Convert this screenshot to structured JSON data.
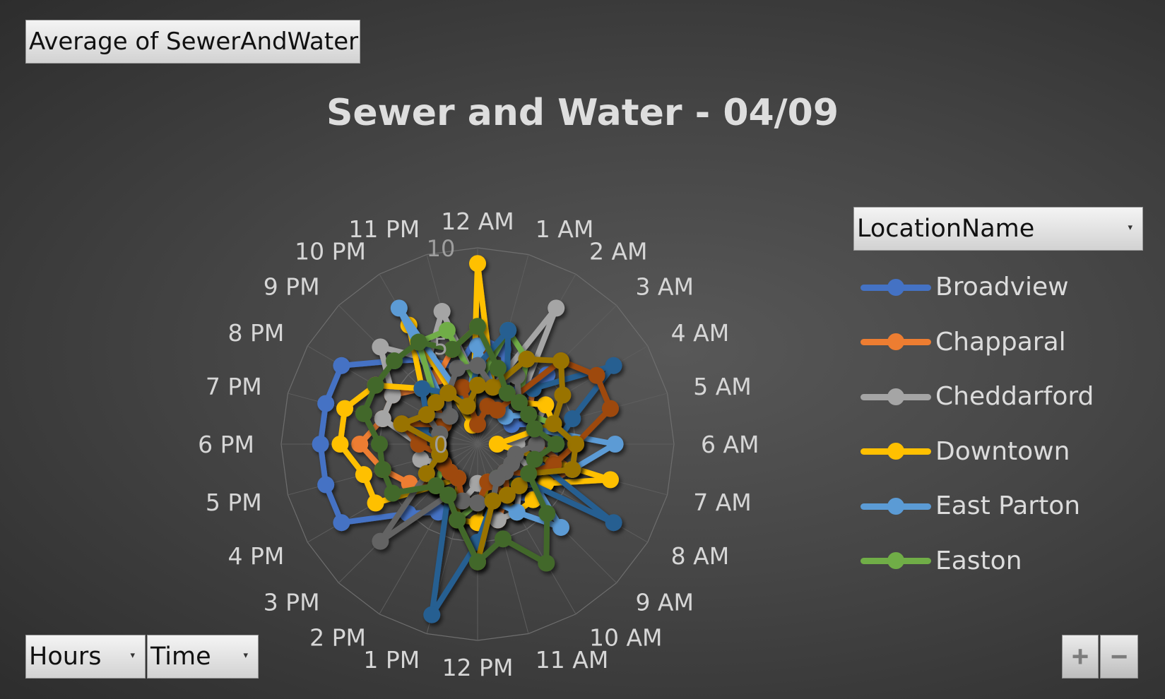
{
  "pivot": {
    "value_field": "Average of SewerAndWater",
    "legend_field": "LocationName",
    "axis_fields": [
      "Hours",
      "Time"
    ],
    "zoom_in": "+",
    "zoom_out": "−"
  },
  "icons": {
    "dropdown": "dropdown-arrow-icon",
    "zoom_in": "plus-icon",
    "zoom_out": "minus-icon"
  },
  "chart_data": {
    "type": "radar",
    "title": "Sewer and Water - 04/09",
    "categories": [
      "12 AM",
      "1 AM",
      "2 AM",
      "3 AM",
      "4 AM",
      "5 AM",
      "6 AM",
      "7 AM",
      "8 AM",
      "9 AM",
      "10 AM",
      "11 AM",
      "12 PM",
      "1 PM",
      "2 PM",
      "3 PM",
      "4 PM",
      "5 PM",
      "6 PM",
      "7 PM",
      "8 PM",
      "9 PM",
      "10 PM",
      "11 PM"
    ],
    "radial_axis": {
      "min": 0,
      "max": 10,
      "tick_labels": [
        "0",
        "5",
        "10"
      ]
    },
    "grid": true,
    "legend_position": "right",
    "series": [
      {
        "name": "Broadview",
        "color": "#4472c4",
        "values": [
          5.5,
          5,
          3,
          5,
          2,
          4,
          4,
          4,
          3,
          4,
          3,
          3,
          3,
          3,
          4,
          5,
          8,
          8,
          8,
          8,
          8,
          6,
          5,
          4
        ]
      },
      {
        "name": "Chapparal",
        "color": "#ed7d31",
        "values": [
          6,
          3,
          4,
          4,
          3,
          3,
          3,
          5,
          4,
          3,
          3,
          4,
          4,
          4,
          3,
          3,
          4,
          5,
          6,
          5,
          5,
          4,
          4,
          5
        ]
      },
      {
        "name": "Cheddarford",
        "color": "#a5a5a5",
        "values": [
          3,
          3,
          8,
          3,
          4,
          3,
          2,
          2,
          4,
          3,
          4,
          4,
          2,
          3,
          3,
          3,
          2,
          3,
          3,
          5,
          5,
          7,
          5,
          7
        ]
      },
      {
        "name": "Downtown",
        "color": "#ffc000",
        "values": [
          9.2,
          3,
          3,
          3,
          4,
          4,
          1,
          7,
          4,
          4,
          4,
          2,
          4,
          4,
          2,
          3,
          6,
          6,
          7,
          7,
          6,
          4,
          7,
          1
        ]
      },
      {
        "name": "East Parton",
        "color": "#5b9bd5",
        "values": [
          5,
          3,
          3,
          2,
          3,
          3,
          7,
          5,
          3,
          6,
          4,
          3,
          3,
          3,
          2,
          2,
          2,
          2,
          2,
          2,
          3,
          2,
          8,
          2
        ]
      },
      {
        "name": "Easton",
        "color": "#70ad47",
        "values": [
          3,
          6,
          5,
          3,
          3,
          4,
          5,
          4,
          3,
          3,
          2,
          3,
          3,
          4,
          3,
          3,
          2,
          2,
          2,
          2,
          2,
          3,
          6,
          6
        ]
      },
      {
        "name": "",
        "color": "#255e91",
        "values": [
          4,
          6,
          3,
          4,
          8,
          5,
          4,
          3,
          8,
          2,
          3,
          3,
          5,
          9,
          3,
          3,
          3,
          2,
          2,
          3,
          3,
          4,
          3,
          2
        ]
      },
      {
        "name": "",
        "color": "#9e480e",
        "values": [
          1,
          2,
          2,
          6,
          7,
          7,
          5,
          4,
          3,
          2,
          3,
          2,
          3,
          3,
          2,
          2,
          2,
          2,
          3,
          4,
          2,
          3,
          3,
          3
        ]
      },
      {
        "name": "",
        "color": "#636363",
        "values": [
          4,
          3,
          4,
          3,
          3,
          3,
          3,
          2,
          2,
          2,
          2,
          3,
          3,
          3,
          3,
          7,
          3,
          2,
          2,
          2,
          3,
          2,
          3,
          4
        ]
      },
      {
        "name": "",
        "color": "#997300",
        "values": [
          3,
          3,
          5,
          6,
          5,
          4,
          5,
          5,
          3,
          3,
          3,
          3,
          6,
          4,
          3,
          3,
          3,
          2,
          2,
          4,
          3,
          3,
          3,
          2
        ]
      },
      {
        "name": "",
        "color": "#43682b",
        "values": [
          6,
          4,
          3,
          3,
          3,
          3,
          4,
          3,
          3,
          5,
          7,
          5,
          6,
          4,
          3,
          3,
          5,
          5,
          5,
          6,
          6,
          6,
          6,
          5
        ]
      }
    ]
  }
}
